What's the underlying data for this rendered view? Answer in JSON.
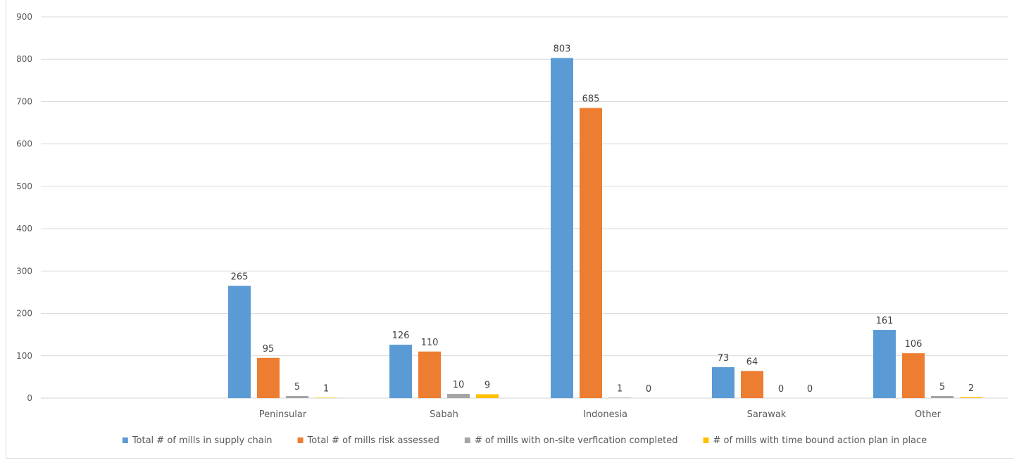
{
  "chart_data": {
    "type": "bar",
    "categories": [
      "",
      "Peninsular",
      "Sabah",
      "Indonesia",
      "Sarawak",
      "Other"
    ],
    "series": [
      {
        "name": "Total # of mills in supply chain",
        "color": "#5b9bd5",
        "values": [
          null,
          265,
          126,
          803,
          73,
          161
        ]
      },
      {
        "name": "Total # of mills risk assessed",
        "color": "#ed7d31",
        "values": [
          null,
          95,
          110,
          685,
          64,
          106
        ]
      },
      {
        "name": "# of mills with on-site verfication completed",
        "color": "#a5a5a5",
        "values": [
          null,
          5,
          10,
          1,
          0,
          5
        ]
      },
      {
        "name": "# of mills with time bound action plan in place",
        "color": "#ffc000",
        "values": [
          null,
          1,
          9,
          0,
          0,
          2
        ]
      }
    ],
    "yticks": [
      0,
      100,
      200,
      300,
      400,
      500,
      600,
      700,
      800,
      900
    ],
    "ylim": [
      0,
      900
    ],
    "grid": true,
    "legend_position": "bottom",
    "data_labels": true
  }
}
